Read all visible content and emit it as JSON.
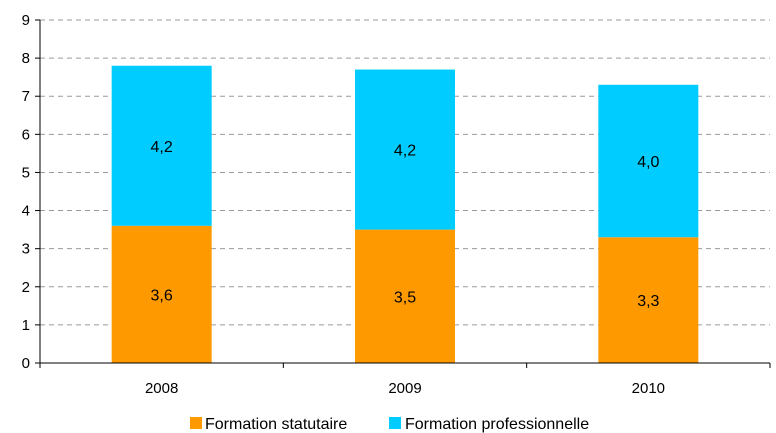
{
  "chart_data": {
    "type": "bar",
    "stacked": true,
    "categories": [
      "2008",
      "2009",
      "2010"
    ],
    "series": [
      {
        "name": "Formation statutaire",
        "values": [
          3.6,
          3.5,
          3.3
        ],
        "labels": [
          "3,6",
          "3,5",
          "3,3"
        ],
        "color": "#FF9900"
      },
      {
        "name": "Formation professionnelle",
        "values": [
          4.2,
          4.2,
          4.0
        ],
        "labels": [
          "4,2",
          "4,2",
          "4,0"
        ],
        "color": "#00CCFF"
      }
    ],
    "ylim": [
      0,
      9
    ],
    "yticks": [
      "0",
      "1",
      "2",
      "3",
      "4",
      "5",
      "6",
      "7",
      "8",
      "9"
    ],
    "grid": true,
    "legend_position": "bottom",
    "title": "",
    "xlabel": "",
    "ylabel": ""
  }
}
